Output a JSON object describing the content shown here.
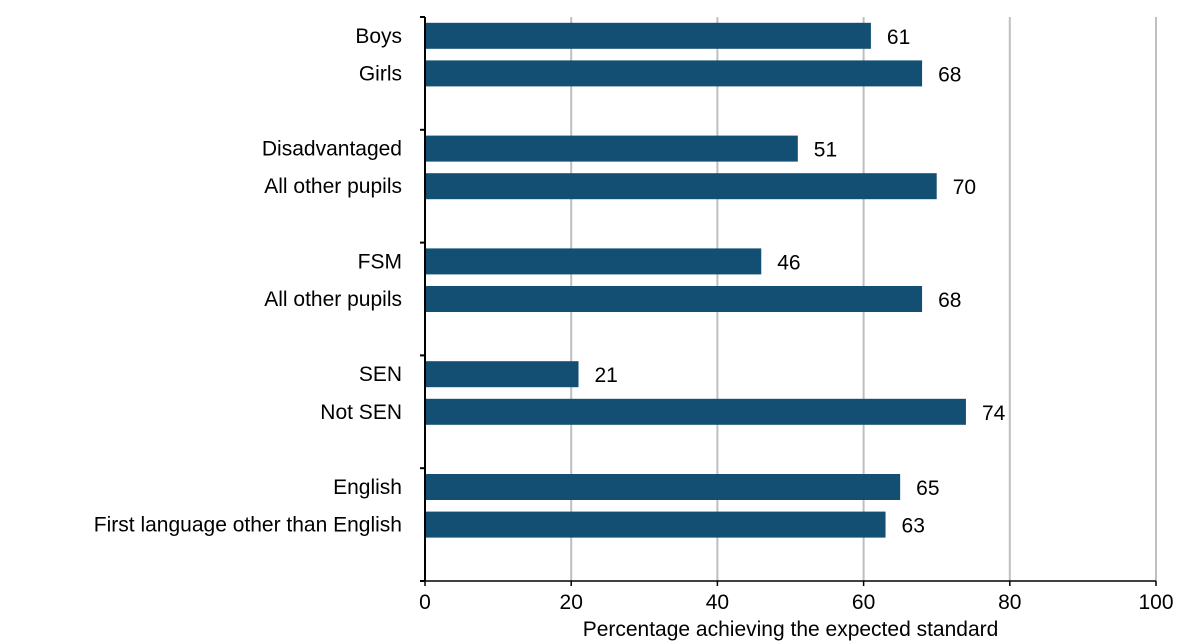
{
  "chart_data": {
    "type": "bar",
    "orientation": "horizontal",
    "title": "",
    "xlabel": "Percentage achieving the expected standard",
    "ylabel": "",
    "xlim": [
      0,
      100
    ],
    "xticks": [
      0,
      20,
      40,
      60,
      80,
      100
    ],
    "grid": "vertical",
    "legend": "none",
    "bar_color": "#124F72",
    "groups": [
      {
        "categories": [
          "Boys",
          "Girls"
        ],
        "values": [
          61,
          68
        ]
      },
      {
        "categories": [
          "Disadvantaged",
          "All other pupils"
        ],
        "values": [
          51,
          70
        ]
      },
      {
        "categories": [
          "FSM",
          "All other pupils"
        ],
        "values": [
          46,
          68
        ]
      },
      {
        "categories": [
          "SEN",
          "Not SEN"
        ],
        "values": [
          21,
          74
        ]
      },
      {
        "categories": [
          "English",
          "First language other than English"
        ],
        "values": [
          65,
          63
        ]
      }
    ]
  }
}
